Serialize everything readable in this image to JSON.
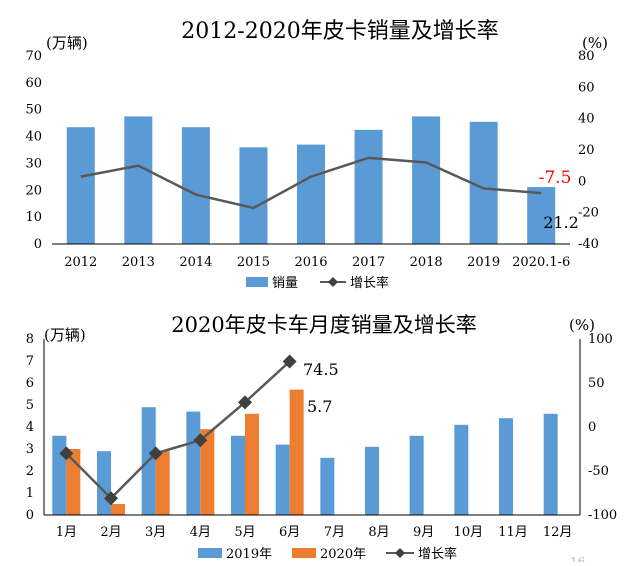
{
  "colors": {
    "bar2019": "#5b9bd5",
    "bar2020": "#ed7d31",
    "line": "#595959",
    "highlight": "#ff0000",
    "grid": "#d9d9d9",
    "axis": "#000000"
  },
  "chart_data": [
    {
      "type": "bar",
      "title": "2012-2020年皮卡销量及增长率",
      "left_unit": "(万辆)",
      "right_unit": "(%)",
      "categories": [
        "2012",
        "2013",
        "2014",
        "2015",
        "2016",
        "2017",
        "2018",
        "2019",
        "2020.1-6"
      ],
      "series": [
        {
          "name": "销量",
          "kind": "bar",
          "axis": "left",
          "values": [
            43.5,
            47.5,
            43.5,
            36,
            37,
            42.5,
            47.5,
            45.5,
            21.2
          ]
        },
        {
          "name": "增长率",
          "kind": "line",
          "axis": "right",
          "values": [
            3,
            10,
            -8.5,
            -17,
            3,
            15,
            12,
            -4.5,
            -7.5
          ]
        }
      ],
      "ylim_left": [
        0,
        70
      ],
      "yticks_left": [
        "0",
        "10",
        "20",
        "30",
        "40",
        "50",
        "60",
        "70"
      ],
      "ylim_right": [
        -40,
        80
      ],
      "yticks_right": [
        "-40",
        "-20",
        "0",
        "20",
        "40",
        "60",
        "80"
      ],
      "annotations": {
        "growth_last": "-7.5",
        "sales_last": "21.2"
      },
      "legend_position": "bottom",
      "grid": false
    },
    {
      "type": "bar",
      "title": "2020年皮卡车月度销量及增长率",
      "left_unit": "(万辆)",
      "right_unit": "(%)",
      "categories": [
        "1月",
        "2月",
        "3月",
        "4月",
        "5月",
        "6月",
        "7月",
        "8月",
        "9月",
        "10月",
        "11月",
        "12月"
      ],
      "series": [
        {
          "name": "2019年",
          "kind": "bar",
          "axis": "left",
          "values": [
            3.6,
            2.9,
            4.9,
            4.7,
            3.6,
            3.2,
            2.6,
            3.1,
            3.6,
            4.1,
            4.4,
            4.6
          ]
        },
        {
          "name": "2020年",
          "kind": "bar",
          "axis": "left",
          "values": [
            3.0,
            0.5,
            2.9,
            3.9,
            4.6,
            5.7,
            null,
            null,
            null,
            null,
            null,
            null
          ]
        },
        {
          "name": "增长率",
          "kind": "line",
          "axis": "right",
          "values": [
            -30,
            -81,
            -30,
            -15,
            28,
            74.5,
            null,
            null,
            null,
            null,
            null,
            null
          ]
        }
      ],
      "ylim_left": [
        0,
        8
      ],
      "yticks_left": [
        "0",
        "1",
        "2",
        "3",
        "4",
        "5",
        "6",
        "7",
        "8"
      ],
      "ylim_right": [
        -100,
        100
      ],
      "yticks_right": [
        "-100",
        "-50",
        "0",
        "50",
        "100"
      ],
      "annotations": {
        "growth_june": "74.5",
        "sales_june": "5.7"
      },
      "legend_position": "bottom",
      "grid": false
    }
  ],
  "page_number": "16"
}
